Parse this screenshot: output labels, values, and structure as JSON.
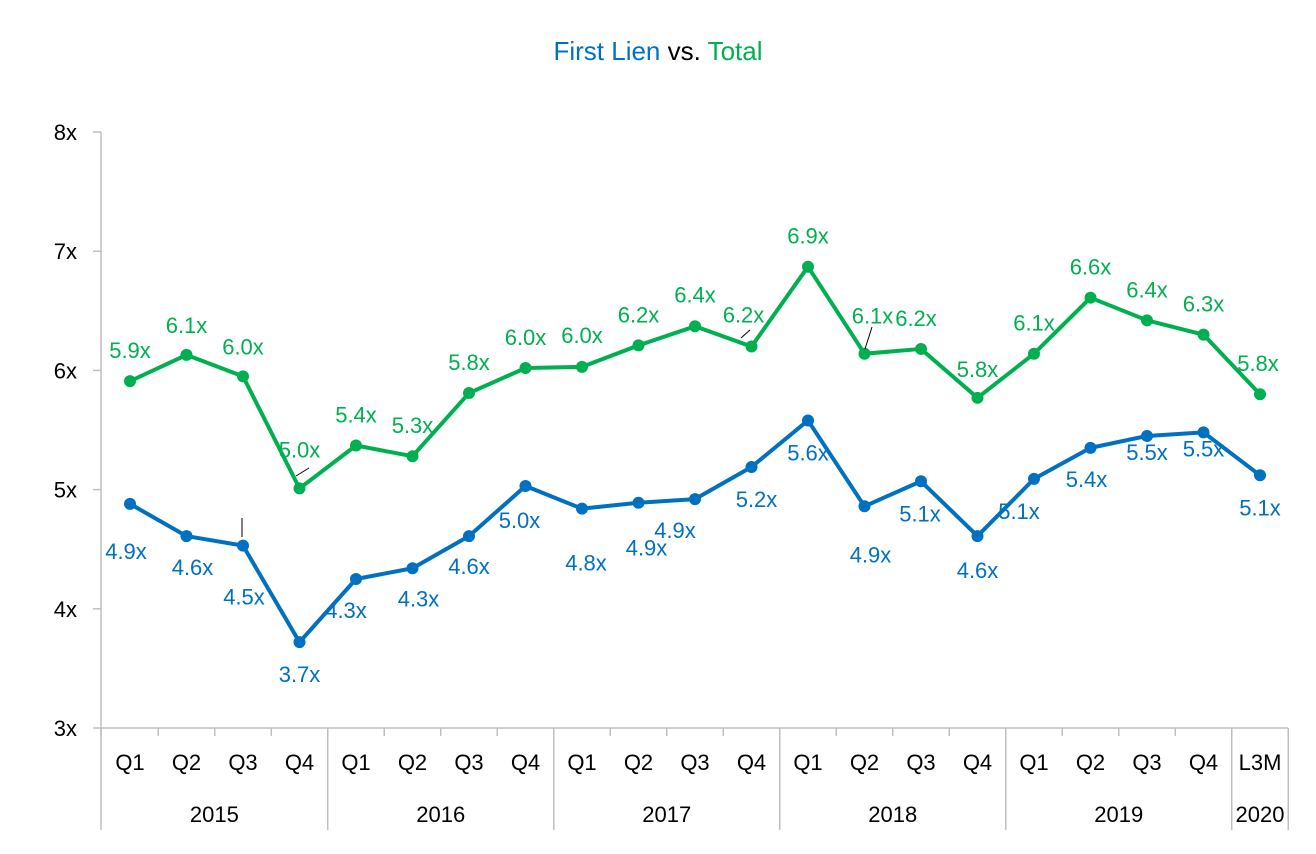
{
  "colors": {
    "first_lien": "#0070C0",
    "total": "#00B050",
    "axis": "#BFBFBF",
    "text": "#000000"
  },
  "title": {
    "part1": "First Lien",
    "part2": " vs. ",
    "part3": "Total"
  },
  "chart_data": {
    "type": "line",
    "title": "First Lien vs. Total",
    "categories": [
      "Q1",
      "Q2",
      "Q3",
      "Q4",
      "Q1",
      "Q2",
      "Q3",
      "Q4",
      "Q1",
      "Q2",
      "Q3",
      "Q4",
      "Q1",
      "Q2",
      "Q3",
      "Q4",
      "Q1",
      "Q2",
      "Q3",
      "Q4",
      "L3M"
    ],
    "groups": [
      {
        "label": "2015",
        "count": 4
      },
      {
        "label": "2016",
        "count": 4
      },
      {
        "label": "2017",
        "count": 4
      },
      {
        "label": "2018",
        "count": 4
      },
      {
        "label": "2019",
        "count": 4
      },
      {
        "label": "2020",
        "count": 1
      }
    ],
    "series": [
      {
        "name": "Total",
        "color": "#00B050",
        "values": [
          5.91,
          6.13,
          5.95,
          5.01,
          5.37,
          5.28,
          5.81,
          6.02,
          6.03,
          6.21,
          6.37,
          6.2,
          6.87,
          6.14,
          6.18,
          5.77,
          6.14,
          6.61,
          6.42,
          6.3,
          5.8
        ],
        "labels": [
          "5.9x",
          "6.1x",
          "6.0x",
          "5.0x",
          "5.4x",
          "5.3x",
          "5.8x",
          "6.0x",
          "6.0x",
          "6.2x",
          "6.4x",
          "6.2x",
          "6.9x",
          "6.1x",
          "6.2x",
          "5.8x",
          "6.1x",
          "6.6x",
          "6.4x",
          "6.3x",
          "5.8x"
        ]
      },
      {
        "name": "First Lien",
        "color": "#0070C0",
        "values": [
          4.88,
          4.61,
          4.53,
          3.72,
          4.25,
          4.34,
          4.61,
          5.03,
          4.84,
          4.89,
          4.92,
          5.19,
          5.58,
          4.86,
          5.07,
          4.61,
          5.09,
          5.35,
          5.45,
          5.48,
          5.12
        ],
        "labels": [
          "4.9x",
          "4.6x",
          "4.5x",
          "3.7x",
          "4.3x",
          "4.3x",
          "4.6x",
          "5.0x",
          "4.8x",
          "4.9x",
          "4.9x",
          "5.2x",
          "5.6x",
          "4.9x",
          "5.1x",
          "4.6x",
          "5.1x",
          "5.4x",
          "5.5x",
          "5.5x",
          "5.1x"
        ]
      }
    ],
    "ylim": [
      3,
      8
    ],
    "yticks": [
      3,
      4,
      5,
      6,
      7,
      8
    ],
    "ytick_labels": [
      "3x",
      "4x",
      "5x",
      "6x",
      "7x",
      "8x"
    ],
    "grid": false,
    "legend": "none"
  }
}
